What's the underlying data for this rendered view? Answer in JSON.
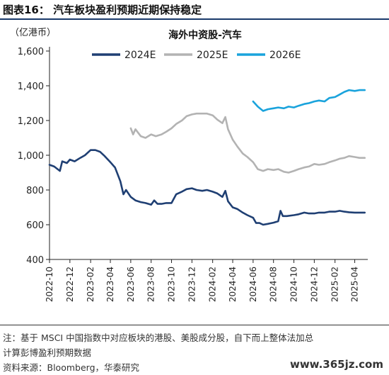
{
  "figure": {
    "label": "图表16：  汽车板块盈利预期近期保持稳定"
  },
  "notes": {
    "line1": "注：基于 MSCI 中国指数中对应板块的港股、美股成分股，自下而上整体法加总",
    "line2": "计算彭博盈利预期数据",
    "source": "资料来源：Bloomberg，华泰研究"
  },
  "watermark": "www.365jz.com",
  "chart_data": {
    "type": "line",
    "title": "海外中资股-汽车",
    "unit_label": "（亿港币）",
    "ylim": [
      400,
      1600
    ],
    "yticks": [
      400,
      600,
      800,
      1000,
      1200,
      1400,
      1600
    ],
    "x_tick_labels": [
      "2022-10",
      "2022-12",
      "2023-02",
      "2023-04",
      "2023-06",
      "2023-08",
      "2023-10",
      "2023-12",
      "2024-02",
      "2024-04",
      "2024-06",
      "2024-08",
      "2024-10",
      "2024-12",
      "2025-02",
      "2025-04"
    ],
    "grid": false,
    "legend_position": "top",
    "series": [
      {
        "name": "2024E",
        "color": "#1f3f73",
        "points": [
          [
            "2022-10-01",
            945
          ],
          [
            "2022-10-15",
            935
          ],
          [
            "2022-11-01",
            910
          ],
          [
            "2022-11-08",
            965
          ],
          [
            "2022-11-22",
            955
          ],
          [
            "2022-12-01",
            975
          ],
          [
            "2022-12-15",
            965
          ],
          [
            "2023-01-01",
            985
          ],
          [
            "2023-01-15",
            1000
          ],
          [
            "2023-02-01",
            1030
          ],
          [
            "2023-02-15",
            1030
          ],
          [
            "2023-03-01",
            1020
          ],
          [
            "2023-03-15",
            995
          ],
          [
            "2023-04-01",
            960
          ],
          [
            "2023-04-15",
            930
          ],
          [
            "2023-05-01",
            850
          ],
          [
            "2023-05-10",
            775
          ],
          [
            "2023-05-18",
            800
          ],
          [
            "2023-06-01",
            760
          ],
          [
            "2023-06-15",
            740
          ],
          [
            "2023-07-01",
            730
          ],
          [
            "2023-07-15",
            725
          ],
          [
            "2023-08-01",
            715
          ],
          [
            "2023-08-10",
            740
          ],
          [
            "2023-08-20",
            720
          ],
          [
            "2023-09-01",
            720
          ],
          [
            "2023-09-15",
            725
          ],
          [
            "2023-10-01",
            725
          ],
          [
            "2023-10-15",
            775
          ],
          [
            "2023-11-01",
            790
          ],
          [
            "2023-11-15",
            805
          ],
          [
            "2023-12-01",
            810
          ],
          [
            "2023-12-15",
            800
          ],
          [
            "2024-01-01",
            795
          ],
          [
            "2024-01-15",
            800
          ],
          [
            "2024-02-01",
            790
          ],
          [
            "2024-02-15",
            780
          ],
          [
            "2024-03-01",
            760
          ],
          [
            "2024-03-10",
            795
          ],
          [
            "2024-03-18",
            735
          ],
          [
            "2024-04-01",
            700
          ],
          [
            "2024-04-15",
            690
          ],
          [
            "2024-05-01",
            670
          ],
          [
            "2024-05-15",
            655
          ],
          [
            "2024-06-01",
            640
          ],
          [
            "2024-06-10",
            610
          ],
          [
            "2024-06-20",
            610
          ],
          [
            "2024-07-01",
            600
          ],
          [
            "2024-07-15",
            605
          ],
          [
            "2024-08-01",
            612
          ],
          [
            "2024-08-15",
            620
          ],
          [
            "2024-08-22",
            680
          ],
          [
            "2024-08-29",
            650
          ],
          [
            "2024-09-10",
            650
          ],
          [
            "2024-10-01",
            655
          ],
          [
            "2024-10-15",
            660
          ],
          [
            "2024-11-01",
            670
          ],
          [
            "2024-11-15",
            665
          ],
          [
            "2024-12-01",
            665
          ],
          [
            "2024-12-15",
            670
          ],
          [
            "2025-01-01",
            670
          ],
          [
            "2025-01-15",
            675
          ],
          [
            "2025-02-01",
            675
          ],
          [
            "2025-02-15",
            680
          ],
          [
            "2025-03-01",
            675
          ],
          [
            "2025-03-15",
            672
          ],
          [
            "2025-04-01",
            670
          ],
          [
            "2025-04-15",
            670
          ],
          [
            "2025-05-01",
            670
          ]
        ]
      },
      {
        "name": "2025E",
        "color": "#b3b3b3",
        "points": [
          [
            "2023-06-01",
            1155
          ],
          [
            "2023-06-08",
            1120
          ],
          [
            "2023-06-15",
            1150
          ],
          [
            "2023-07-01",
            1110
          ],
          [
            "2023-07-15",
            1100
          ],
          [
            "2023-08-01",
            1120
          ],
          [
            "2023-08-15",
            1110
          ],
          [
            "2023-09-01",
            1120
          ],
          [
            "2023-09-15",
            1135
          ],
          [
            "2023-10-01",
            1155
          ],
          [
            "2023-10-15",
            1180
          ],
          [
            "2023-11-01",
            1200
          ],
          [
            "2023-11-15",
            1225
          ],
          [
            "2023-12-01",
            1235
          ],
          [
            "2023-12-15",
            1240
          ],
          [
            "2024-01-01",
            1240
          ],
          [
            "2024-01-15",
            1240
          ],
          [
            "2024-02-01",
            1230
          ],
          [
            "2024-02-15",
            1205
          ],
          [
            "2024-03-01",
            1185
          ],
          [
            "2024-03-10",
            1220
          ],
          [
            "2024-03-18",
            1150
          ],
          [
            "2024-04-01",
            1090
          ],
          [
            "2024-04-15",
            1050
          ],
          [
            "2024-05-01",
            1010
          ],
          [
            "2024-05-15",
            990
          ],
          [
            "2024-06-01",
            960
          ],
          [
            "2024-06-15",
            920
          ],
          [
            "2024-07-01",
            910
          ],
          [
            "2024-07-15",
            920
          ],
          [
            "2024-08-01",
            915
          ],
          [
            "2024-08-15",
            920
          ],
          [
            "2024-09-01",
            905
          ],
          [
            "2024-09-15",
            900
          ],
          [
            "2024-10-01",
            910
          ],
          [
            "2024-10-15",
            920
          ],
          [
            "2024-11-01",
            930
          ],
          [
            "2024-11-15",
            935
          ],
          [
            "2024-12-01",
            950
          ],
          [
            "2024-12-15",
            945
          ],
          [
            "2025-01-01",
            950
          ],
          [
            "2025-01-15",
            960
          ],
          [
            "2025-02-01",
            970
          ],
          [
            "2025-02-15",
            980
          ],
          [
            "2025-03-01",
            985
          ],
          [
            "2025-03-15",
            995
          ],
          [
            "2025-04-01",
            990
          ],
          [
            "2025-04-15",
            985
          ],
          [
            "2025-05-01",
            985
          ]
        ]
      },
      {
        "name": "2026E",
        "color": "#1aa3dc",
        "points": [
          [
            "2024-06-01",
            1310
          ],
          [
            "2024-06-15",
            1280
          ],
          [
            "2024-07-01",
            1255
          ],
          [
            "2024-07-15",
            1265
          ],
          [
            "2024-08-01",
            1270
          ],
          [
            "2024-08-15",
            1275
          ],
          [
            "2024-09-01",
            1270
          ],
          [
            "2024-09-15",
            1280
          ],
          [
            "2024-10-01",
            1275
          ],
          [
            "2024-10-15",
            1285
          ],
          [
            "2024-11-01",
            1295
          ],
          [
            "2024-11-15",
            1300
          ],
          [
            "2024-12-01",
            1310
          ],
          [
            "2024-12-15",
            1315
          ],
          [
            "2025-01-01",
            1310
          ],
          [
            "2025-01-15",
            1330
          ],
          [
            "2025-02-01",
            1335
          ],
          [
            "2025-02-15",
            1350
          ],
          [
            "2025-03-01",
            1365
          ],
          [
            "2025-03-15",
            1375
          ],
          [
            "2025-04-01",
            1370
          ],
          [
            "2025-04-15",
            1375
          ],
          [
            "2025-05-01",
            1375
          ]
        ]
      }
    ]
  }
}
